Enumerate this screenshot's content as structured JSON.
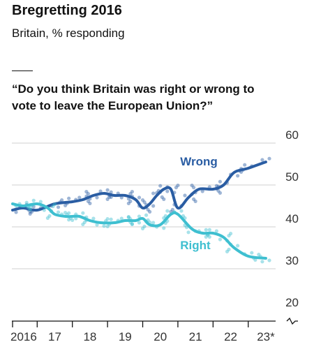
{
  "header": {
    "title": "Bregretting 2016",
    "subtitle": "Britain, % responding",
    "question": "“Do you think Britain was right or wrong to vote to leave the European Union?”"
  },
  "colors": {
    "wrong": "#2a5da3",
    "right": "#3ebfd0",
    "grid": "#cfcfcf",
    "axis": "#121212",
    "text": "#333333"
  },
  "chart_data": {
    "type": "line",
    "title": "Bregretting 2016",
    "subtitle": "Britain, % responding",
    "x_ticks": [
      "2016",
      "17",
      "18",
      "19",
      "20",
      "21",
      "22",
      "23*"
    ],
    "xlim": [
      2016.3,
      2023.6
    ],
    "ylim": [
      20,
      60
    ],
    "y_ticks": [
      20,
      30,
      40,
      50,
      60
    ],
    "grid": true,
    "axis_break": true,
    "series": [
      {
        "name": "Wrong",
        "x": [
          2016.3,
          2016.6,
          2017.0,
          2017.5,
          2018.0,
          2018.3,
          2018.6,
          2018.9,
          2019.2,
          2019.5,
          2019.8,
          2020.0,
          2020.2,
          2020.4,
          2020.6,
          2020.8,
          2021.0,
          2021.3,
          2021.6,
          2022.0,
          2022.3,
          2022.6,
          2023.0,
          2023.5
        ],
        "y": [
          44,
          44.5,
          44,
          45.5,
          46,
          46.5,
          47.5,
          48,
          47.5,
          47.5,
          46.5,
          44.5,
          45.5,
          47.5,
          49,
          49,
          44.5,
          47,
          49,
          49,
          50,
          53,
          54,
          55.5
        ]
      },
      {
        "name": "Right",
        "x": [
          2016.3,
          2016.6,
          2017.0,
          2017.3,
          2017.5,
          2017.8,
          2018.0,
          2018.2,
          2018.5,
          2018.8,
          2019.2,
          2019.5,
          2019.8,
          2020.0,
          2020.2,
          2020.5,
          2020.8,
          2021.0,
          2021.4,
          2021.7,
          2022.0,
          2022.3,
          2022.6,
          2023.0,
          2023.5
        ],
        "y": [
          45.5,
          45,
          45.5,
          44.5,
          43,
          42.5,
          42.5,
          42.5,
          41.5,
          41,
          41,
          41.5,
          41.5,
          42,
          40.5,
          40.5,
          43,
          43,
          39.5,
          38.5,
          38.5,
          37.5,
          35,
          33,
          32.5
        ]
      }
    ]
  }
}
